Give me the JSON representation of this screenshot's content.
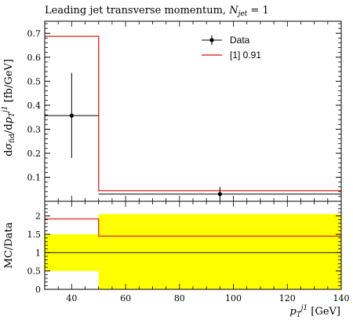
{
  "figure": {
    "title": "Leading jet transverse momentum, N_jet = 1",
    "title_main": "Leading jet transverse momentum, ",
    "title_math": "N",
    "title_math_sub": "jet",
    "title_math_rest": " = 1"
  },
  "chart_data": [
    {
      "type": "line",
      "panel": "main",
      "title": "Leading jet transverse momentum, N_jet = 1",
      "ylabel": "dσ_fid/dp_T^j1 [fb/GeV]",
      "xlim": [
        30,
        140
      ],
      "ylim": [
        0,
        0.75
      ],
      "yticks": [
        0.1,
        0.2,
        0.3,
        0.4,
        0.5,
        0.6,
        0.7
      ],
      "ytick_labels": [
        "0.1",
        "0.2",
        "0.3",
        "0.4",
        "0.5",
        "0.6",
        "0.7"
      ],
      "legend_position": "top-right",
      "series": [
        {
          "name": "Data",
          "kind": "points",
          "color": "#000000",
          "points": [
            {
              "x": 40,
              "y": 0.357,
              "xlow": 30,
              "xhigh": 50,
              "ylow": 0.18,
              "yhigh": 0.535
            },
            {
              "x": 95,
              "y": 0.03,
              "xlow": 50,
              "xhigh": 140,
              "ylow": 0.005,
              "yhigh": 0.06
            }
          ]
        },
        {
          "name": "[1] 0.91",
          "kind": "histogram",
          "color": "#e8322b",
          "bin_edges": [
            30,
            50,
            140
          ],
          "values": [
            0.687,
            0.044
          ]
        }
      ]
    },
    {
      "type": "line",
      "panel": "ratio",
      "xlabel": "p_T^j1 [GeV]",
      "ylabel": "MC/Data",
      "xlim": [
        30,
        140
      ],
      "ylim": [
        0,
        2.4
      ],
      "xticks": [
        40,
        60,
        80,
        100,
        120,
        140
      ],
      "xtick_labels": [
        "40",
        "60",
        "80",
        "100",
        "120",
        "140"
      ],
      "yticks": [
        0,
        0.5,
        1,
        1.5,
        2
      ],
      "ytick_labels": [
        "0",
        "0.5",
        "1",
        "1.5",
        "2"
      ],
      "reference_line": 1,
      "uncertainty_band": {
        "color": "#ffff00",
        "bin_edges": [
          30,
          50,
          140
        ],
        "low": [
          0.5,
          0.0
        ],
        "high": [
          1.5,
          2.05
        ]
      },
      "series": [
        {
          "name": "[1] 0.91",
          "kind": "histogram",
          "color": "#e8322b",
          "bin_edges": [
            30,
            50,
            140
          ],
          "values": [
            1.92,
            1.45
          ]
        }
      ]
    }
  ]
}
